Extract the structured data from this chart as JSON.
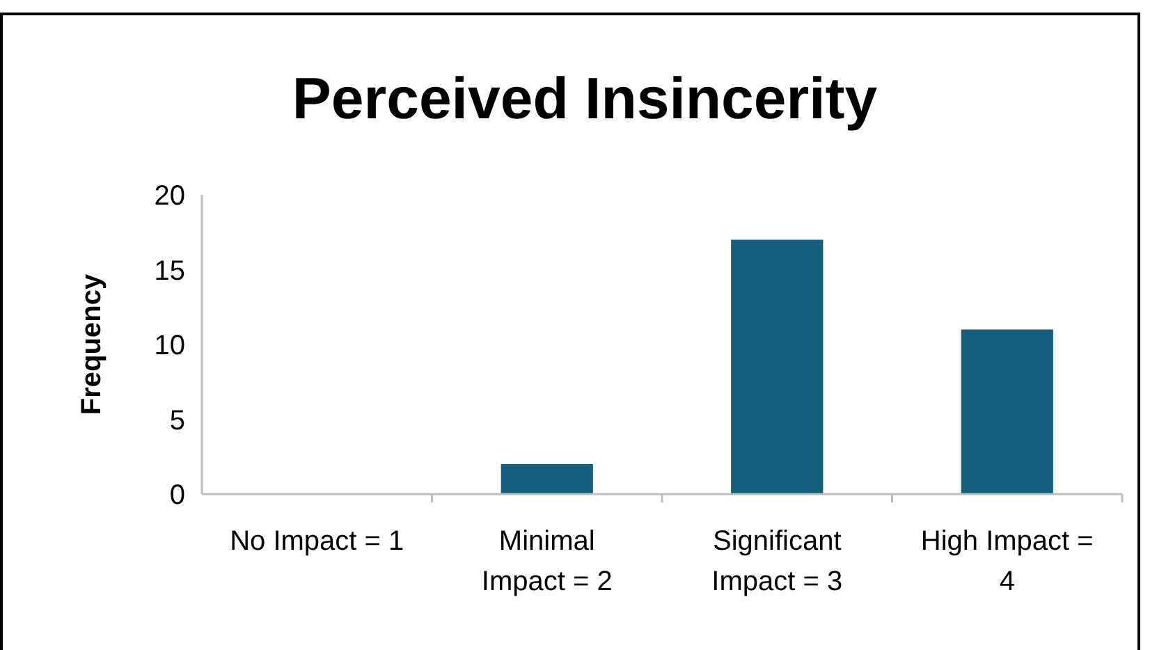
{
  "chart_data": {
    "type": "bar",
    "title": "Perceived Insincerity",
    "ylabel": "Frequency",
    "categories": [
      "No Impact = 1",
      "Minimal Impact = 2",
      "Significant Impact = 3",
      "High Impact = 4"
    ],
    "values": [
      0,
      2,
      17,
      11
    ],
    "color": "#165e7e",
    "ylim": [
      0,
      20
    ],
    "yticks": [
      0,
      5,
      10,
      15,
      20
    ],
    "grid": false
  }
}
